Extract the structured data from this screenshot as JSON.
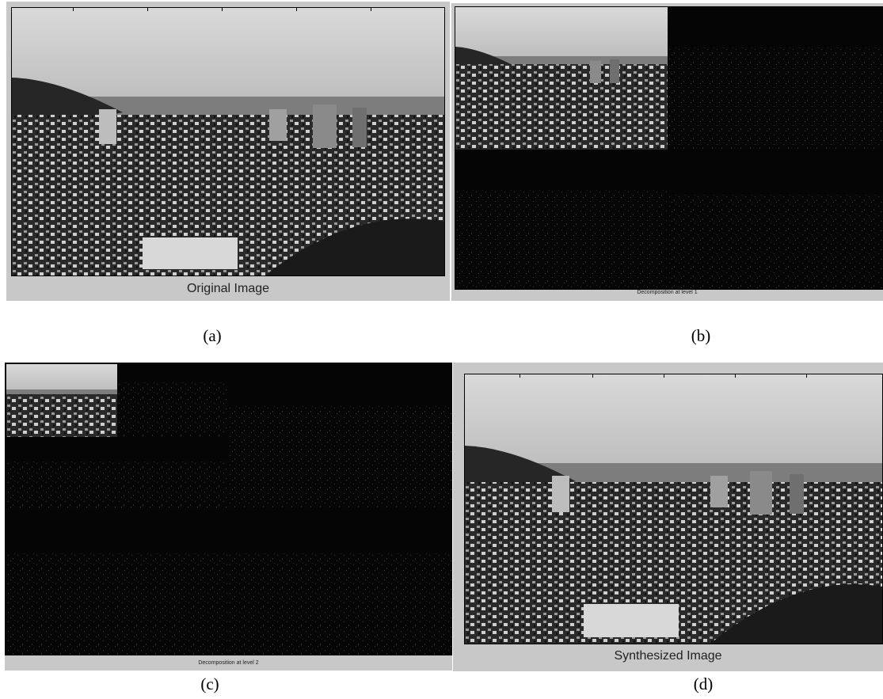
{
  "panels": {
    "original": {
      "caption": "Original Image",
      "label": "(a)"
    },
    "level1": {
      "caption": "Decomposition at level 1",
      "label": "(b)"
    },
    "level2": {
      "caption": "Decomposition at level 2",
      "label": "(c)"
    },
    "synthesized": {
      "caption": "Synthesized Image",
      "label": "(d)"
    }
  },
  "colors": {
    "figure_background": "#c8c8c8",
    "detail_background": "#050505"
  }
}
